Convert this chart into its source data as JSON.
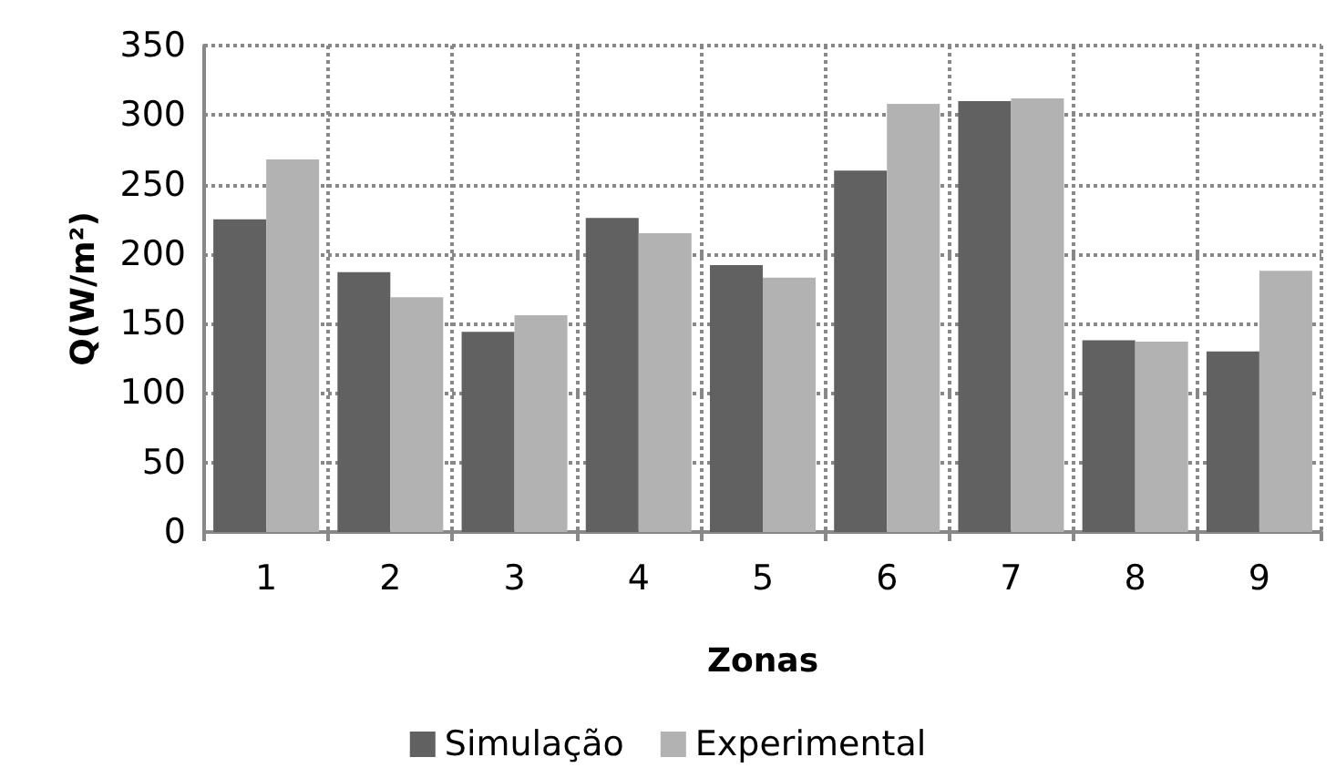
{
  "chart_data": {
    "type": "bar",
    "xlabel": "Zonas",
    "ylabel": "Q(W/m²)",
    "categories": [
      "1",
      "2",
      "3",
      "4",
      "5",
      "6",
      "7",
      "8",
      "9"
    ],
    "series": [
      {
        "name": "Simulação",
        "color": "#616161",
        "values": [
          225,
          187,
          144,
          226,
          192,
          260,
          310,
          138,
          130
        ]
      },
      {
        "name": "Experimental",
        "color": "#b2b2b2",
        "values": [
          268,
          169,
          156,
          215,
          183,
          308,
          312,
          137,
          188
        ]
      }
    ],
    "ylim": [
      0,
      350
    ],
    "yticks": [
      0,
      50,
      100,
      150,
      200,
      250,
      300,
      350
    ],
    "grid": true,
    "legend": "bottom"
  }
}
